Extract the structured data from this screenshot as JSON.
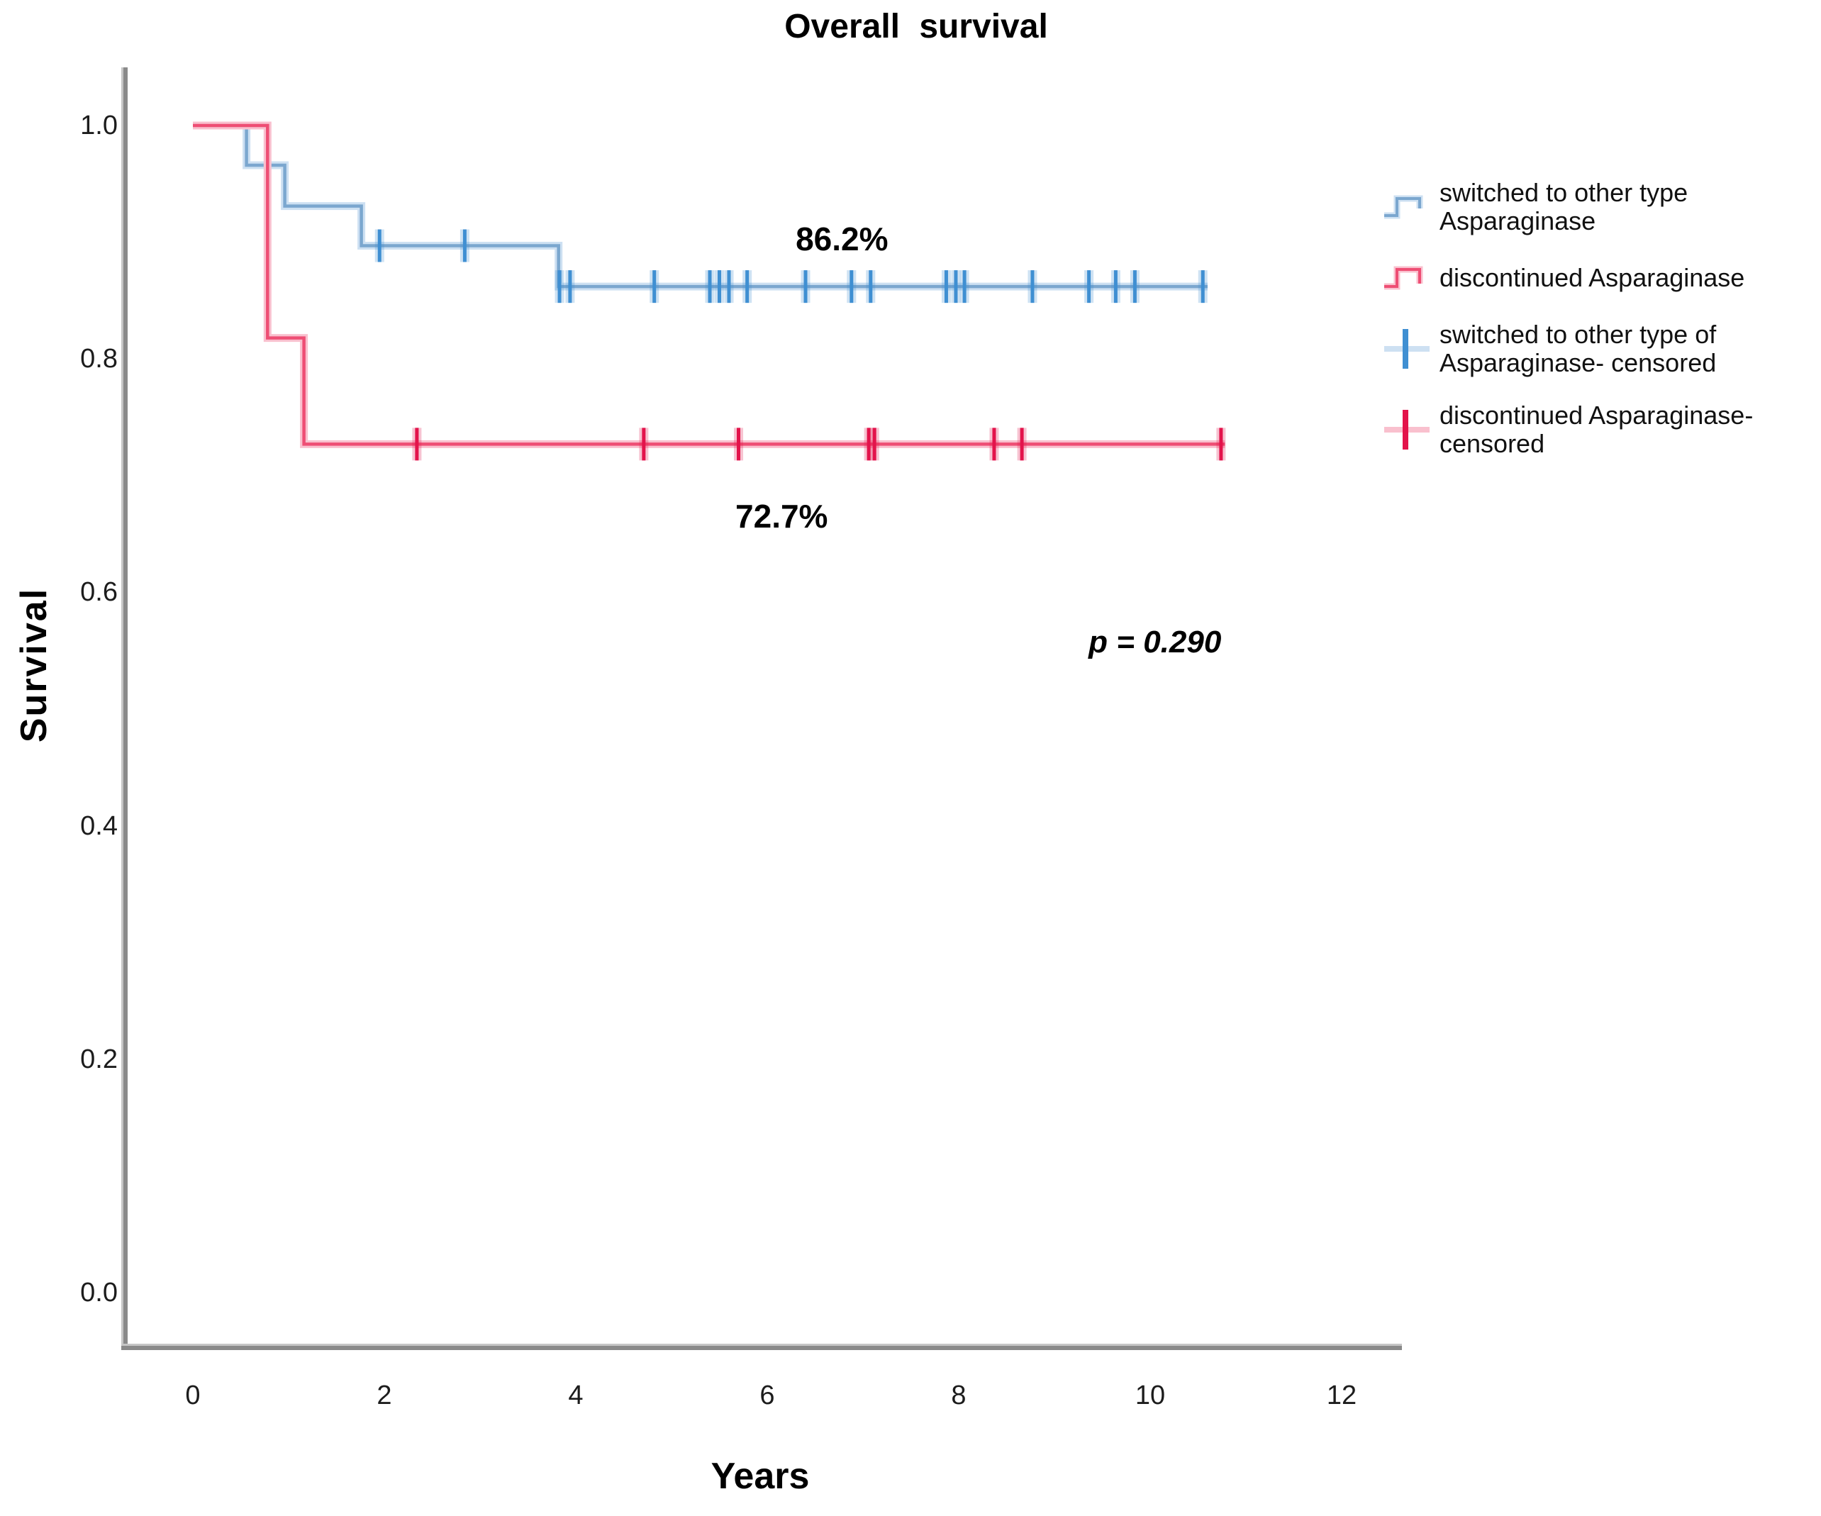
{
  "figure_title": "Overall survival",
  "axes": {
    "x": {
      "label": "Years",
      "tick_values": [
        0,
        2,
        4,
        6,
        8,
        10,
        12
      ],
      "range": [
        0,
        12.6
      ]
    },
    "y": {
      "label": "Survival",
      "tick_labels": [
        "1.0",
        "0.8",
        "0.6",
        "0.4",
        "0.2",
        "0.0"
      ],
      "tick_values": [
        1.0,
        0.8,
        0.6,
        0.4,
        0.2,
        0.0
      ],
      "range": [
        0.0,
        1.0
      ]
    }
  },
  "legend": {
    "items": [
      {
        "icon": "blue-step-line-icon",
        "lines": [
          "switched to other type",
          "Asparaginase"
        ]
      },
      {
        "icon": "red-step-line-icon",
        "lines": [
          "discontinued Asparaginase"
        ]
      },
      {
        "icon": "blue-censor-plus-icon",
        "lines": [
          "switched to other type of",
          "Asparaginase- censored"
        ]
      },
      {
        "icon": "red-censor-plus-icon",
        "lines": [
          "discontinued Asparaginase-",
          "censored"
        ]
      }
    ]
  },
  "colors": {
    "blue_main": "#7ba7cf",
    "blue_halo": "#cde0f2",
    "blue_censor": "#3f8fd2",
    "red_main": "#ee4e74",
    "red_halo": "#f9c0ce",
    "red_censor": "#e3134b",
    "axis_spine": "#8a8a8a",
    "axis_spine_highlight": "#c6c6c6"
  },
  "chart_data": {
    "type": "line",
    "subtype": "kaplan-meier-step",
    "title": "Overall survival",
    "xlabel": "Years",
    "ylabel": "Survival",
    "xlim": [
      0,
      12.6
    ],
    "ylim": [
      0.0,
      1.0
    ],
    "grid": false,
    "legend_position": "right",
    "series": [
      {
        "name": "switched to other type Asparaginase",
        "color": "blue",
        "steps": [
          [
            0,
            1.0
          ],
          [
            0.56,
            0.966
          ],
          [
            0.96,
            0.931
          ],
          [
            1.76,
            0.897
          ],
          [
            3.82,
            0.862
          ]
        ],
        "end_time": 10.6,
        "final_value_label": "86.2%",
        "censored": [
          [
            1.95,
            0.897
          ],
          [
            2.84,
            0.897
          ],
          [
            3.83,
            0.862
          ],
          [
            3.94,
            0.862
          ],
          [
            4.82,
            0.862
          ],
          [
            5.4,
            0.862
          ],
          [
            5.5,
            0.862
          ],
          [
            5.6,
            0.862
          ],
          [
            5.79,
            0.862
          ],
          [
            6.4,
            0.862
          ],
          [
            6.88,
            0.862
          ],
          [
            7.08,
            0.862
          ],
          [
            7.87,
            0.862
          ],
          [
            7.97,
            0.862
          ],
          [
            8.06,
            0.862
          ],
          [
            8.77,
            0.862
          ],
          [
            9.36,
            0.862
          ],
          [
            9.64,
            0.862
          ],
          [
            9.84,
            0.862
          ],
          [
            10.55,
            0.862
          ]
        ]
      },
      {
        "name": "discontinued Asparaginase",
        "color": "red",
        "steps": [
          [
            0,
            1.0
          ],
          [
            0.78,
            0.818
          ],
          [
            1.16,
            0.727
          ]
        ],
        "end_time": 10.78,
        "final_value_label": "72.7%",
        "censored": [
          [
            2.34,
            0.727
          ],
          [
            4.71,
            0.727
          ],
          [
            5.7,
            0.727
          ],
          [
            7.06,
            0.727
          ],
          [
            7.12,
            0.727
          ],
          [
            8.37,
            0.727
          ],
          [
            8.66,
            0.727
          ],
          [
            10.74,
            0.727
          ]
        ]
      }
    ],
    "annotations": [
      {
        "text": "86.2%",
        "t": 6.78,
        "v": 0.903,
        "style": "bold"
      },
      {
        "text": "72.7%",
        "t": 6.15,
        "v": 0.665,
        "style": "bold"
      },
      {
        "text": "p = 0.290",
        "t": 10.05,
        "v": 0.557,
        "style": "bold-italic"
      }
    ]
  }
}
